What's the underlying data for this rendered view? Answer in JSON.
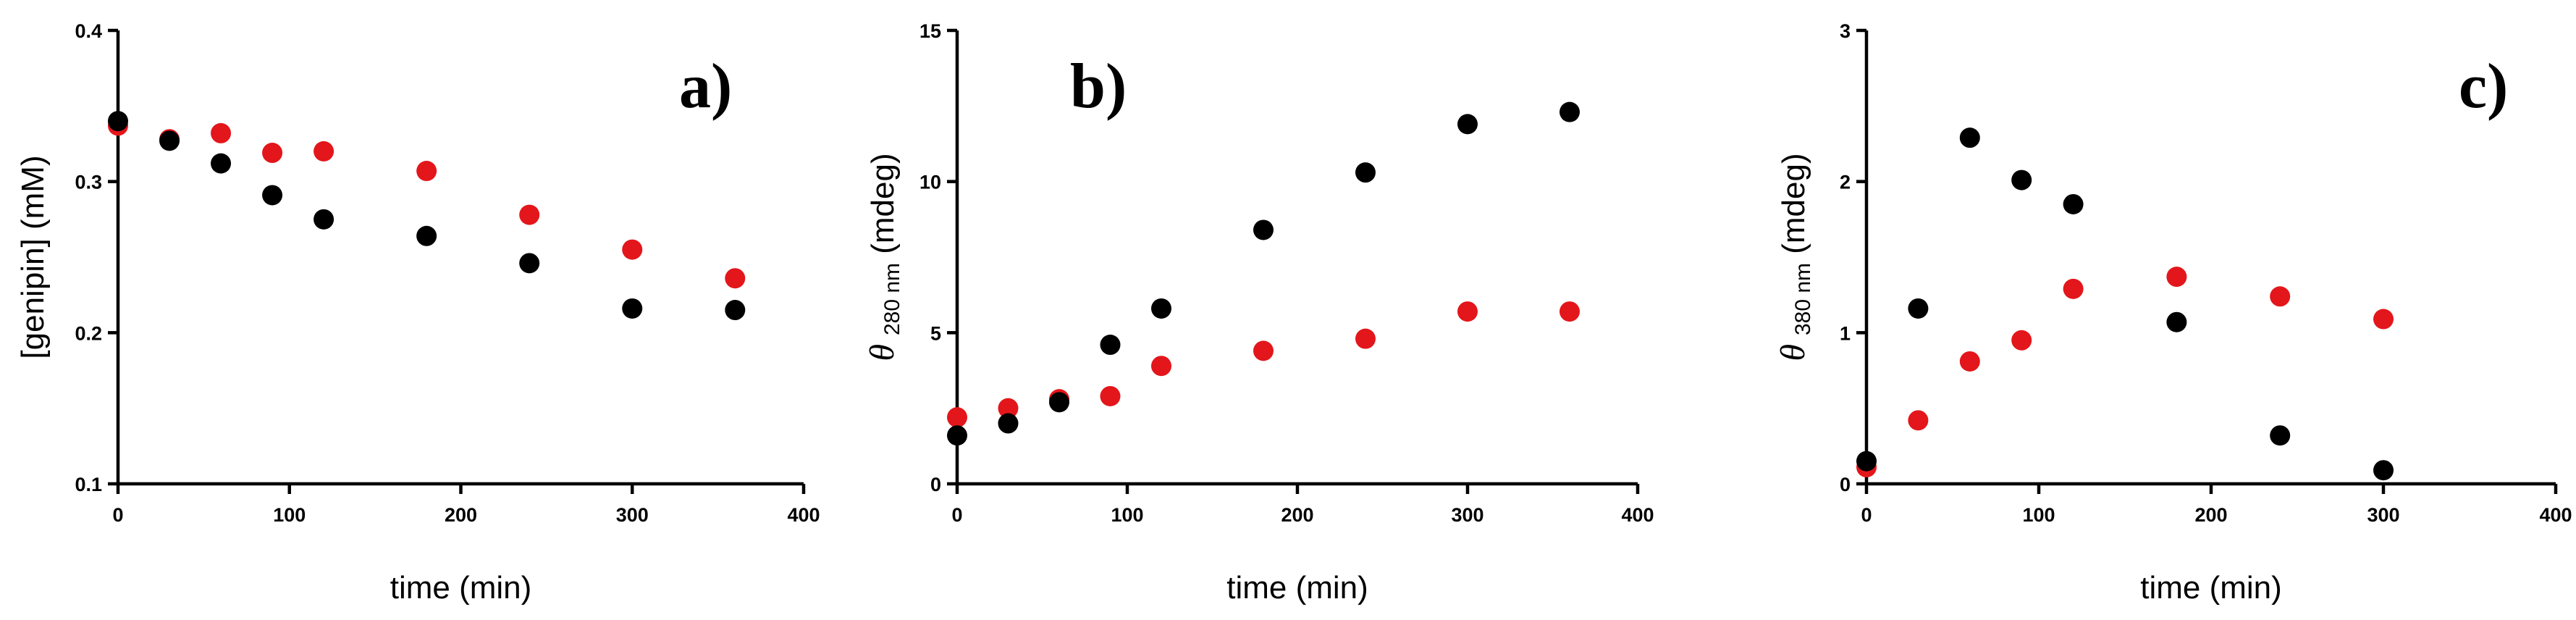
{
  "chart_data": [
    {
      "type": "scatter",
      "panel_label": "a)",
      "xlabel": "time (min)",
      "ylabel": "[genipin] (mM)",
      "ylabel_parts": {
        "main": "[genipin] (mM)",
        "sub": "",
        "tail": ""
      },
      "xlim": [
        0,
        400
      ],
      "ylim": [
        0.1,
        0.4
      ],
      "xticks": [
        0,
        100,
        200,
        300,
        400
      ],
      "xtick_labels": [
        "0",
        "100",
        "200",
        "300",
        "400"
      ],
      "yticks": [
        0.1,
        0.2,
        0.3,
        0.4
      ],
      "ytick_labels": [
        "0.1",
        "0.2",
        "0.3",
        "0.4"
      ],
      "grid": false,
      "series": [
        {
          "color": "#000000",
          "x": [
            0,
            30,
            60,
            90,
            120,
            180,
            240,
            300,
            360
          ],
          "y": [
            0.34,
            0.327,
            0.312,
            0.291,
            0.275,
            0.264,
            0.246,
            0.216,
            0.215
          ]
        },
        {
          "color": "#e3161b",
          "x": [
            0,
            30,
            60,
            90,
            120,
            180,
            240,
            300,
            360
          ],
          "y": [
            0.337,
            0.328,
            0.332,
            0.319,
            0.32,
            0.307,
            0.278,
            0.255,
            0.236
          ]
        }
      ]
    },
    {
      "type": "scatter",
      "panel_label": "b)",
      "xlabel": "time (min)",
      "ylabel": "θ 280 nm (mdeg)",
      "ylabel_parts": {
        "main": "θ",
        "sub": "280 nm",
        "tail": "(mdeg)"
      },
      "xlim": [
        0,
        400
      ],
      "ylim": [
        0,
        15
      ],
      "xticks": [
        0,
        100,
        200,
        300,
        400
      ],
      "xtick_labels": [
        "0",
        "100",
        "200",
        "300",
        "400"
      ],
      "yticks": [
        0,
        5,
        10,
        15
      ],
      "ytick_labels": [
        "0",
        "5",
        "10",
        "15"
      ],
      "grid": false,
      "series": [
        {
          "color": "#000000",
          "x": [
            0,
            30,
            60,
            90,
            120,
            180,
            240,
            300,
            360
          ],
          "y": [
            1.6,
            2.0,
            2.7,
            4.6,
            5.8,
            8.4,
            10.3,
            11.9,
            12.3
          ]
        },
        {
          "color": "#e3161b",
          "x": [
            0,
            30,
            60,
            90,
            120,
            180,
            240,
            300,
            360
          ],
          "y": [
            2.2,
            2.5,
            2.8,
            2.9,
            3.9,
            4.4,
            4.8,
            5.7,
            5.7
          ]
        }
      ]
    },
    {
      "type": "scatter",
      "panel_label": "c)",
      "xlabel": "time (min)",
      "ylabel": "θ 380 nm (mdeg)",
      "ylabel_parts": {
        "main": "θ",
        "sub": "380 nm",
        "tail": "(mdeg)"
      },
      "xlim": [
        0,
        400
      ],
      "ylim": [
        0,
        3
      ],
      "xticks": [
        0,
        100,
        200,
        300,
        400
      ],
      "xtick_labels": [
        "0",
        "100",
        "200",
        "300",
        "400"
      ],
      "yticks": [
        0,
        1,
        2,
        3
      ],
      "ytick_labels": [
        "0",
        "1",
        "2",
        "3"
      ],
      "grid": false,
      "series": [
        {
          "color": "#000000",
          "x": [
            0,
            30,
            60,
            90,
            120,
            180,
            240,
            300
          ],
          "y": [
            0.15,
            1.16,
            2.29,
            2.01,
            1.85,
            1.07,
            0.32,
            0.09
          ]
        },
        {
          "color": "#e3161b",
          "x": [
            0,
            30,
            60,
            90,
            120,
            180,
            240,
            300
          ],
          "y": [
            0.11,
            0.42,
            0.81,
            0.95,
            1.29,
            1.37,
            1.24,
            1.09
          ]
        }
      ]
    }
  ]
}
